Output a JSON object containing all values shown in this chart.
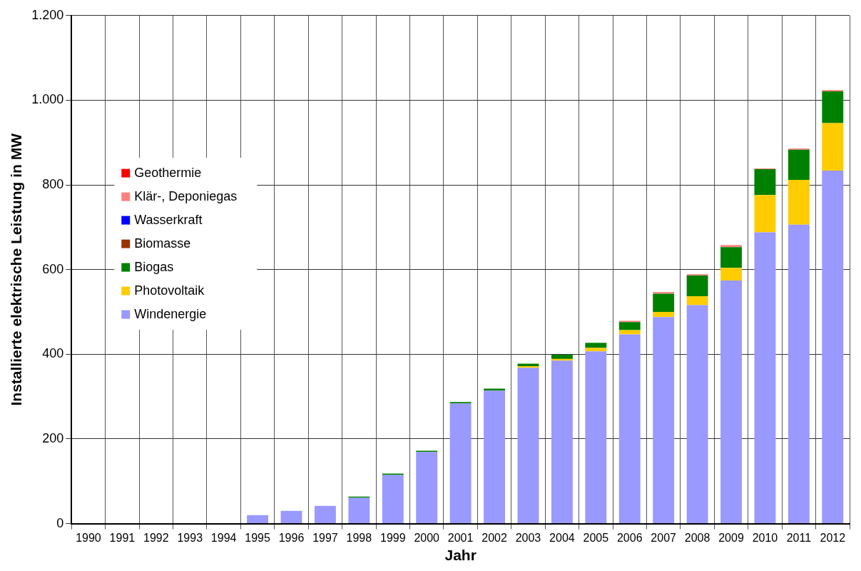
{
  "chart_data": {
    "type": "bar",
    "stacked": true,
    "xlabel": "Jahr",
    "ylabel": "Installierte elektrische Leistung in MW",
    "categories": [
      "1990",
      "1991",
      "1992",
      "1993",
      "1994",
      "1995",
      "1996",
      "1997",
      "1998",
      "1999",
      "2000",
      "2001",
      "2002",
      "2003",
      "2004",
      "2005",
      "2006",
      "2007",
      "2008",
      "2009",
      "2010",
      "2011",
      "2012"
    ],
    "series": [
      {
        "name": "Windenergie",
        "color": "#9999ff",
        "values": [
          0,
          0,
          0,
          0,
          0,
          20,
          30,
          42,
          61,
          115,
          169,
          284,
          314,
          368,
          385,
          407,
          447,
          488,
          516,
          574,
          688,
          706,
          834
        ]
      },
      {
        "name": "Photovoltaik",
        "color": "#ffcc00",
        "values": [
          0,
          0,
          0,
          0,
          0,
          0,
          0,
          0,
          0,
          0,
          0,
          0,
          0,
          4,
          4,
          8,
          10,
          12,
          21,
          30,
          88,
          106,
          112
        ]
      },
      {
        "name": "Biogas",
        "color": "#008000",
        "values": [
          0,
          0,
          0,
          0,
          0,
          0,
          0,
          0,
          3,
          3,
          3,
          3,
          5,
          6,
          10,
          12,
          19,
          43,
          49,
          49,
          61,
          71,
          75
        ]
      },
      {
        "name": "Biomasse",
        "color": "#993300",
        "values": [
          0,
          0,
          0,
          0,
          0,
          0,
          0,
          0,
          0,
          0,
          0,
          0,
          0,
          0,
          0,
          0,
          0,
          0,
          0,
          0,
          0,
          0,
          0
        ]
      },
      {
        "name": "Wasserkraft",
        "color": "#0000ff",
        "values": [
          0,
          0,
          0,
          0,
          0,
          0,
          0,
          0,
          0,
          0,
          0,
          0,
          0,
          0,
          0,
          0,
          0,
          0,
          0,
          0,
          0,
          0,
          0
        ]
      },
      {
        "name": "Klär-, Deponiegas",
        "color": "#ff8080",
        "values": [
          0,
          0,
          0,
          0,
          0,
          0,
          0,
          0,
          0,
          0,
          0,
          0,
          0,
          0,
          0,
          0,
          3,
          4,
          3,
          5,
          2,
          3,
          3
        ]
      },
      {
        "name": "Geothermie",
        "color": "#ff0000",
        "values": [
          0,
          0,
          0,
          0,
          0,
          0,
          0,
          0,
          0,
          0,
          0,
          0,
          0,
          0,
          0,
          0,
          0,
          0,
          0,
          0,
          0,
          0,
          0
        ]
      }
    ],
    "ylim": [
      0,
      1200
    ],
    "yticks": [
      0,
      200,
      400,
      600,
      800,
      {
        "value": 1000,
        "label": "1.000"
      },
      {
        "value": 1200,
        "label": "1.200"
      }
    ],
    "grid": true,
    "legend": "left"
  }
}
